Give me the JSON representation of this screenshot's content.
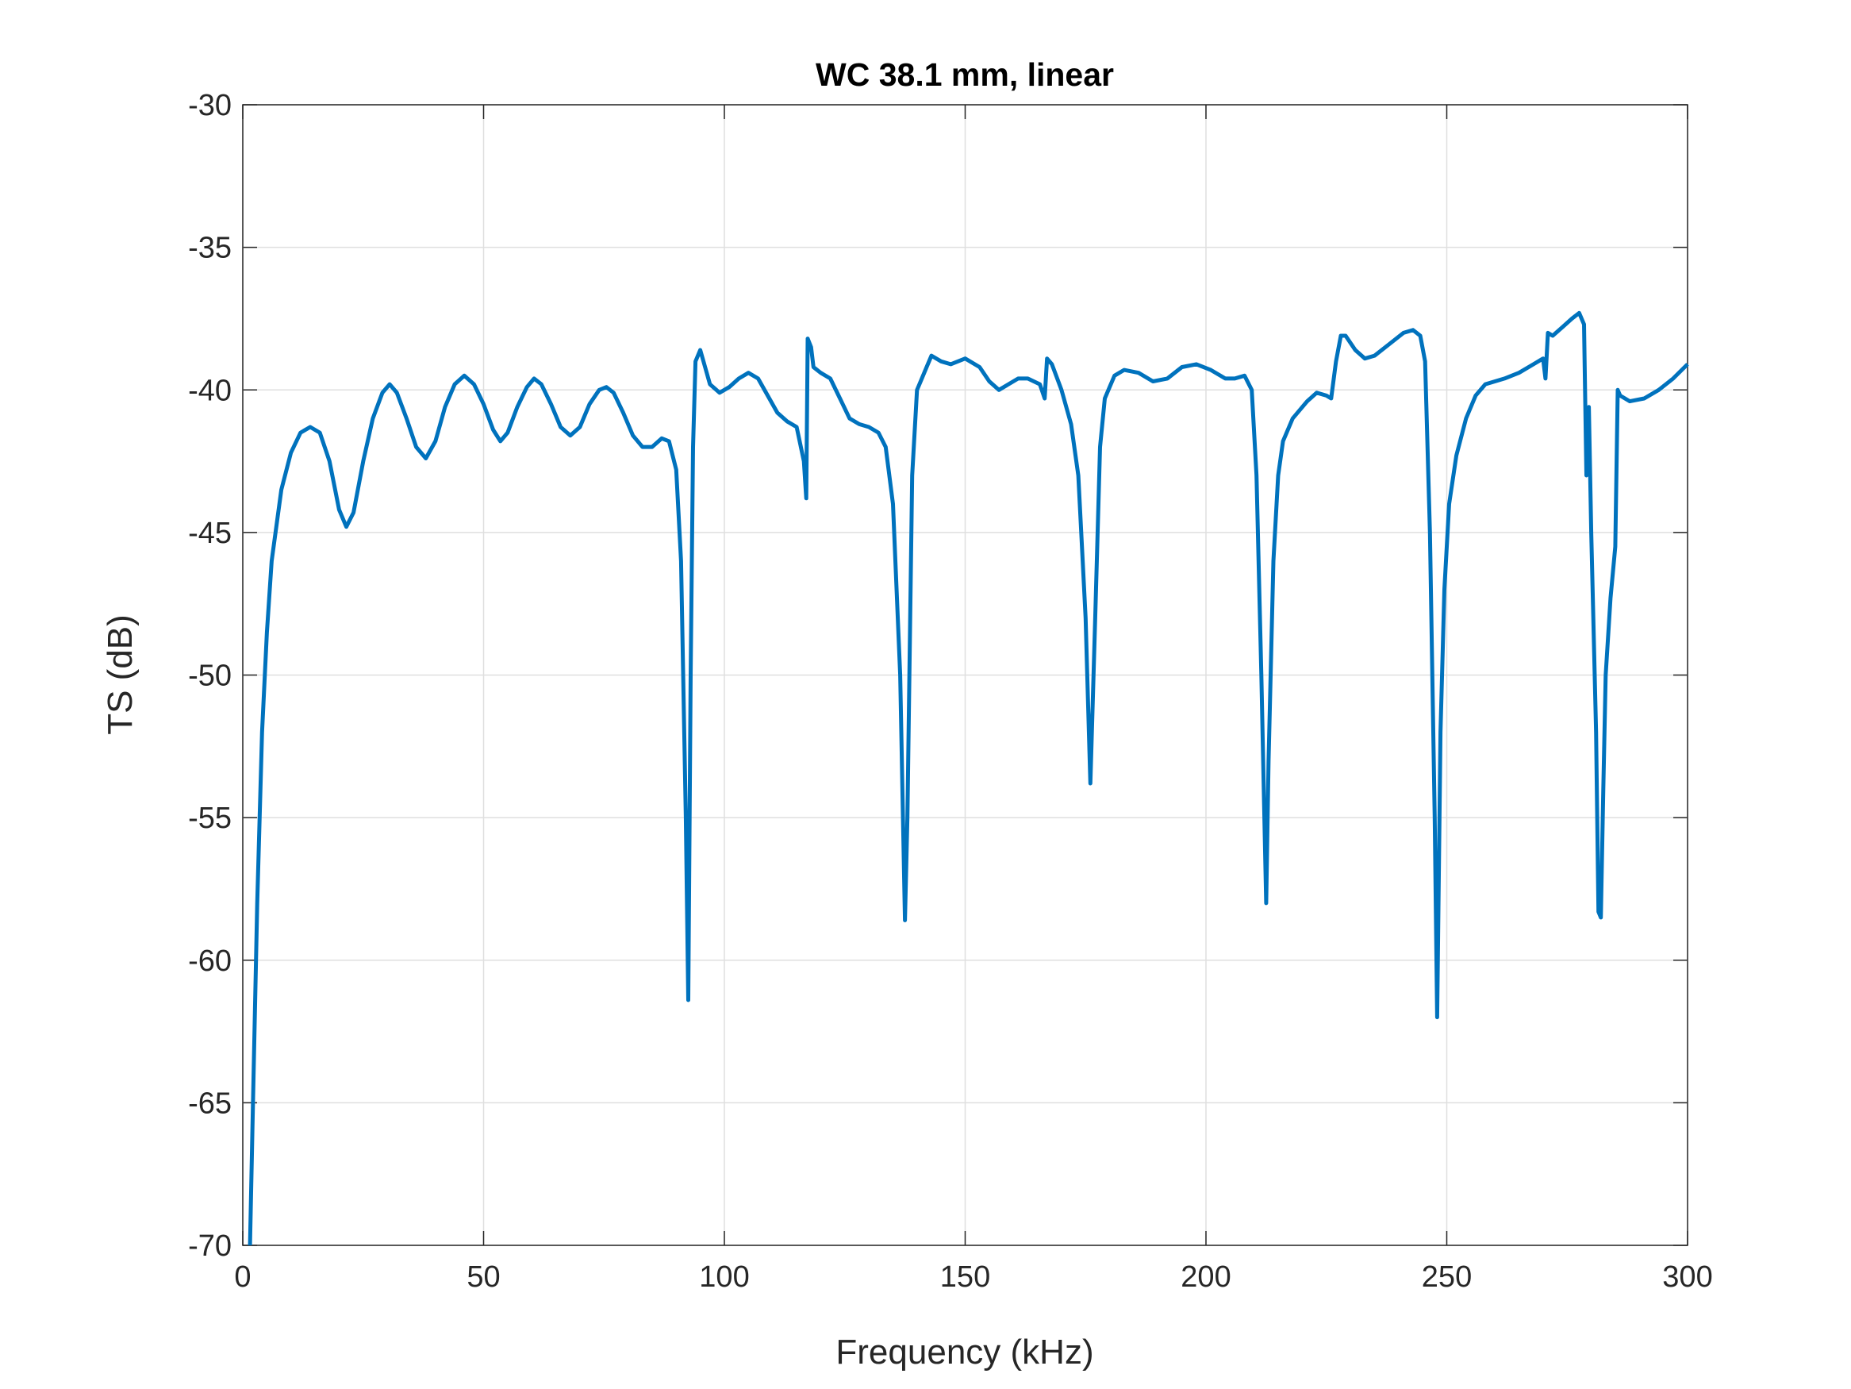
{
  "chart_data": {
    "type": "line",
    "title": "WC 38.1 mm, linear",
    "x_label": "Frequency (kHz)",
    "y_label": "TS (dB)",
    "color": "#0072bd",
    "grid": true,
    "xlim": [
      0,
      300
    ],
    "ylim": [
      -70,
      -30
    ],
    "xticks": [
      0,
      50,
      100,
      150,
      200,
      250,
      300
    ],
    "yticks": [
      -70,
      -65,
      -60,
      -55,
      -50,
      -45,
      -40,
      -35,
      -30
    ],
    "x": [
      1.5,
      2,
      3,
      4,
      5,
      6,
      8,
      10,
      12,
      14,
      16,
      18,
      20,
      21.5,
      23,
      25,
      27,
      29,
      30.5,
      32,
      34,
      36,
      38,
      40,
      42,
      44,
      46,
      48,
      50,
      52,
      53.5,
      55,
      57,
      59,
      60.5,
      62,
      64,
      66,
      68,
      70,
      72,
      74,
      75.5,
      77,
      79,
      81,
      83,
      85,
      87,
      88.5,
      90,
      91,
      92,
      92.5,
      93,
      93.5,
      94,
      95,
      96,
      97,
      99,
      101,
      103,
      105,
      107,
      109,
      111,
      113,
      115,
      116.5,
      117,
      117.3,
      118,
      118.5,
      120,
      122,
      124,
      126,
      128,
      130,
      132,
      133.5,
      135,
      136.5,
      137.5,
      138,
      139,
      140,
      141,
      142,
      143,
      145,
      147,
      150,
      153,
      155,
      157,
      159,
      161,
      163,
      165.5,
      166.5,
      167,
      168,
      170,
      172,
      173.5,
      175,
      176,
      177,
      178,
      179,
      181,
      183,
      186,
      189,
      192,
      195,
      198,
      201,
      204,
      206,
      208,
      209.5,
      210.5,
      211.5,
      212.5,
      213,
      214,
      215,
      216,
      218,
      221,
      223,
      225,
      226,
      227,
      228,
      229,
      231,
      233,
      235,
      238,
      241,
      243,
      244.5,
      245.5,
      246.5,
      247.5,
      248,
      248.7,
      249.5,
      250.5,
      252,
      254,
      256,
      258,
      262,
      265,
      268,
      270,
      270.5,
      271,
      272,
      274,
      276,
      277.5,
      278.5,
      279,
      279.5,
      280,
      281,
      281.5,
      282,
      282.5,
      283,
      284,
      285,
      285.5,
      286,
      288,
      291,
      294,
      297,
      300
    ],
    "values": [
      -70,
      -66,
      -58,
      -52,
      -48.5,
      -46,
      -43.5,
      -42.2,
      -41.5,
      -41.3,
      -41.5,
      -42.5,
      -44.2,
      -44.8,
      -44.3,
      -42.5,
      -41,
      -40.1,
      -39.8,
      -40.1,
      -41,
      -42,
      -42.4,
      -41.8,
      -40.6,
      -39.8,
      -39.5,
      -39.8,
      -40.5,
      -41.4,
      -41.8,
      -41.5,
      -40.6,
      -39.9,
      -39.6,
      -39.8,
      -40.5,
      -41.3,
      -41.6,
      -41.3,
      -40.5,
      -40,
      -39.9,
      -40.1,
      -40.8,
      -41.6,
      -42,
      -42,
      -41.7,
      -41.8,
      -42.8,
      -46,
      -55,
      -61.4,
      -50,
      -42,
      -39,
      -38.6,
      -39.2,
      -39.8,
      -40.1,
      -39.9,
      -39.6,
      -39.4,
      -39.6,
      -40.2,
      -40.8,
      -41.1,
      -41.3,
      -42.5,
      -43.8,
      -38.2,
      -38.5,
      -39.2,
      -39.4,
      -39.6,
      -40.3,
      -41,
      -41.2,
      -41.3,
      -41.5,
      -42,
      -44,
      -50,
      -58.6,
      -55,
      -43,
      -40,
      -39.6,
      -39.2,
      -38.8,
      -39,
      -39.1,
      -38.9,
      -39.2,
      -39.7,
      -40,
      -39.8,
      -39.6,
      -39.6,
      -39.8,
      -40.3,
      -38.9,
      -39.1,
      -40,
      -41.2,
      -43,
      -48,
      -53.8,
      -48,
      -42,
      -40.3,
      -39.5,
      -39.3,
      -39.4,
      -39.7,
      -39.6,
      -39.2,
      -39.1,
      -39.3,
      -39.6,
      -39.6,
      -39.5,
      -40,
      -43,
      -50,
      -58,
      -53,
      -46,
      -43,
      -41.8,
      -41,
      -40.4,
      -40.1,
      -40.2,
      -40.3,
      -39,
      -38.1,
      -38.1,
      -38.6,
      -38.9,
      -38.8,
      -38.4,
      -38,
      -37.9,
      -38.1,
      -39,
      -45,
      -55,
      -62,
      -52,
      -47,
      -44,
      -42.3,
      -41,
      -40.2,
      -39.8,
      -39.6,
      -39.4,
      -39.1,
      -38.9,
      -39.6,
      -38,
      -38.1,
      -37.8,
      -37.5,
      -37.3,
      -37.7,
      -43,
      -40.6,
      -45,
      -52,
      -58.3,
      -58.5,
      -54,
      -50,
      -47.3,
      -45.5,
      -40,
      -40.2,
      -40.4,
      -40.3,
      -40,
      -39.6,
      -39.1
    ]
  }
}
